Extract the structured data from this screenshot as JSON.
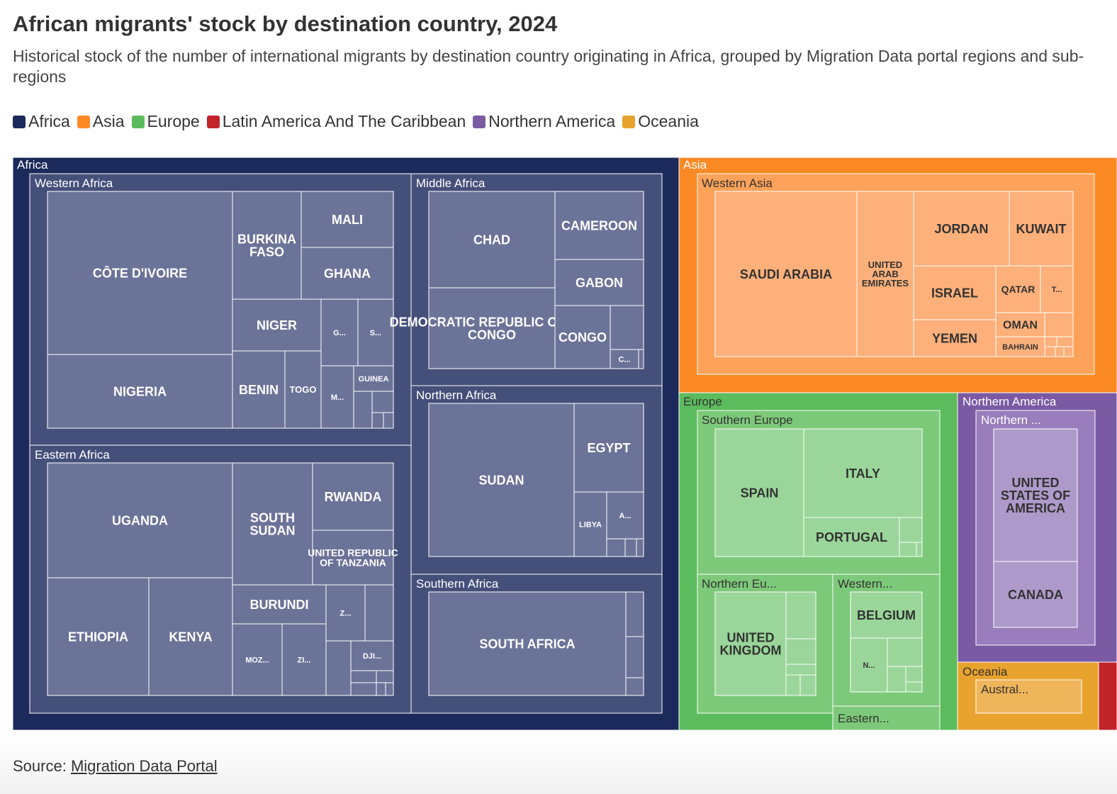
{
  "title": "African migrants' stock by destination country, 2024",
  "subtitle": "Historical stock of the number of international migrants by destination country originating in Africa, grouped by Migration Data portal regions and sub-regions",
  "legend": [
    {
      "label": "Africa",
      "color": "#1b2a5a"
    },
    {
      "label": "Asia",
      "color": "#fb8a25"
    },
    {
      "label": "Europe",
      "color": "#5cbb5c"
    },
    {
      "label": "Latin America And The Caribbean",
      "color": "#c22329"
    },
    {
      "label": "Northern America",
      "color": "#7b5aa4"
    },
    {
      "label": "Oceania",
      "color": "#e8a22e"
    }
  ],
  "source": {
    "prefix": "Source:",
    "link_text": "Migration Data Portal"
  },
  "chart_data": {
    "type": "treemap",
    "title": "African migrants' stock by destination country, 2024",
    "regions": [
      {
        "name": "Africa",
        "color": "#1b2a5a",
        "subregions": [
          {
            "name": "Western Africa",
            "countries": [
              "Côte d'Ivoire",
              "Nigeria",
              "Burkina Faso",
              "Mali",
              "Ghana",
              "Niger",
              "Benin",
              "Togo",
              "Gambia",
              "Senegal",
              "Guinea",
              "Mauritania"
            ]
          },
          {
            "name": "Eastern Africa",
            "countries": [
              "Uganda",
              "Ethiopia",
              "Kenya",
              "South Sudan",
              "Rwanda",
              "United Republic of Tanzania",
              "Burundi",
              "Zambia",
              "Mozambique",
              "Zimbabwe",
              "Djibouti"
            ]
          },
          {
            "name": "Middle Africa",
            "countries": [
              "Chad",
              "Democratic Republic of the Congo",
              "Cameroon",
              "Gabon",
              "Congo",
              "Central African Republic"
            ]
          },
          {
            "name": "Northern Africa",
            "countries": [
              "Sudan",
              "Egypt",
              "Libya",
              "Algeria"
            ]
          },
          {
            "name": "Southern Africa",
            "countries": [
              "South Africa"
            ]
          }
        ]
      },
      {
        "name": "Asia",
        "color": "#fb8a25",
        "subregions": [
          {
            "name": "Western Asia",
            "countries": [
              "Saudi Arabia",
              "United Arab Emirates",
              "Jordan",
              "Kuwait",
              "Israel",
              "Qatar",
              "Türkiye",
              "Yemen",
              "Oman",
              "Bahrain"
            ]
          }
        ]
      },
      {
        "name": "Europe",
        "color": "#5cbb5c",
        "subregions": [
          {
            "name": "Southern Europe",
            "countries": [
              "Spain",
              "Italy",
              "Portugal"
            ]
          },
          {
            "name": "Northern Europe",
            "countries": [
              "United Kingdom"
            ]
          },
          {
            "name": "Western Europe",
            "countries": [
              "Belgium",
              "Netherlands"
            ]
          },
          {
            "name": "Eastern Europe",
            "countries": []
          }
        ]
      },
      {
        "name": "Northern America",
        "color": "#7b5aa4",
        "subregions": [
          {
            "name": "Northern America",
            "countries": [
              "United States of America",
              "Canada"
            ]
          }
        ]
      },
      {
        "name": "Oceania",
        "color": "#e8a22e",
        "subregions": [
          {
            "name": "Australia and New Zealand",
            "countries": []
          }
        ]
      },
      {
        "name": "Latin America And The Caribbean",
        "color": "#c22329",
        "subregions": []
      }
    ],
    "region_labels": {
      "africa": "Africa",
      "asia": "Asia",
      "europe": "Europe",
      "northern_america": "Northern America",
      "oceania": "Oceania"
    },
    "subregion_labels": {
      "western_africa": "Western Africa",
      "eastern_africa": "Eastern Africa",
      "middle_africa": "Middle Africa",
      "northern_africa": "Northern Africa",
      "southern_africa": "Southern Africa",
      "western_asia": "Western Asia",
      "southern_europe": "Southern Europe",
      "northern_europe": "Northern Eu...",
      "western_europe": "Western...",
      "eastern_europe": "Eastern...",
      "northern_america_sub": "Northern ...",
      "australia": "Austral..."
    },
    "tile_labels": {
      "cote_divoire": "CÔTE D'IVOIRE",
      "nigeria": "NIGERIA",
      "burkina_faso": "BURKINA FASO",
      "mali": "MALI",
      "ghana": "GHANA",
      "niger": "NIGER",
      "gambia": "G...",
      "senegal": "S...",
      "benin": "BENIN",
      "togo": "TOGO",
      "mauritania": "M...",
      "guinea": "GUINEA",
      "uganda": "UGANDA",
      "south_sudan": "SOUTH SUDAN",
      "rwanda": "RWANDA",
      "tanzania": "UNITED REPUBLIC OF TANZANIA",
      "ethiopia": "ETHIOPIA",
      "kenya": "KENYA",
      "burundi": "BURUNDI",
      "zambia": "Z...",
      "mozambique": "MOZ...",
      "zimbabwe": "ZI...",
      "djibouti": "DJI...",
      "chad": "CHAD",
      "cameroon": "CAMEROON",
      "gabon": "GABON",
      "drc": "DEMOCRATIC REPUBLIC OF THE CONGO",
      "congo": "CONGO",
      "car": "C...",
      "sudan": "SUDAN",
      "egypt": "EGYPT",
      "libya": "LIBYA",
      "algeria": "A...",
      "south_africa": "SOUTH AFRICA",
      "saudi_arabia": "SAUDI ARABIA",
      "uae": "UNITED ARAB EMIRATES",
      "jordan": "JORDAN",
      "kuwait": "KUWAIT",
      "israel": "ISRAEL",
      "qatar": "QATAR",
      "turkiye": "T...",
      "yemen": "YEMEN",
      "oman": "OMAN",
      "bahrain": "BAHRAIN",
      "spain": "SPAIN",
      "italy": "ITALY",
      "portugal": "PORTUGAL",
      "uk": "UNITED KINGDOM",
      "belgium": "BELGIUM",
      "netherlands": "N...",
      "usa": "UNITED STATES OF AMERICA",
      "canada": "CANADA"
    }
  }
}
